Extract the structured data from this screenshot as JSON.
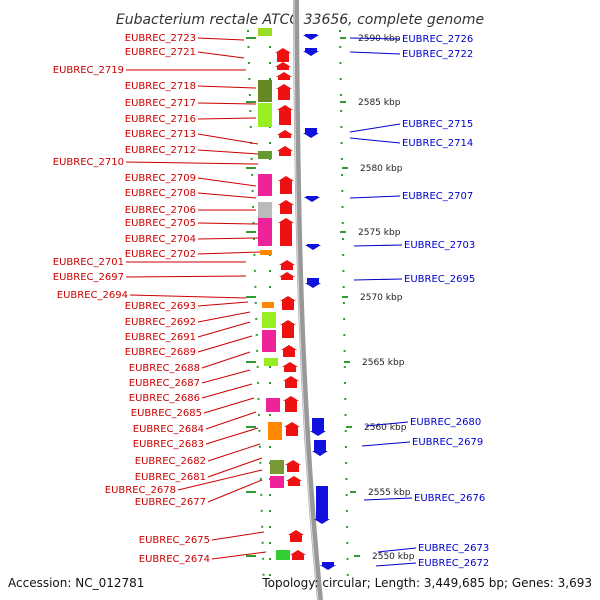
{
  "title": "Eubacterium rectale ATCC 33656, complete genome",
  "accession": "Accession: NC_012781",
  "topology": "Topology: circular; Length: 3,449,685 bp; Genes: 3,693",
  "colors": {
    "left_label": "#cc0000",
    "right_label": "#0000cc",
    "forward_gene": "#ee1111",
    "reverse_gene": "#1111dd",
    "tick": "#339933",
    "backbone": "#999999"
  },
  "scale_ticks": [
    {
      "label": "2590 kbp",
      "kbp": 2590
    },
    {
      "label": "2585 kbp",
      "kbp": 2585
    },
    {
      "label": "2580 kbp",
      "kbp": 2580
    },
    {
      "label": "2575 kbp",
      "kbp": 2575
    },
    {
      "label": "2570 kbp",
      "kbp": 2570
    },
    {
      "label": "2565 kbp",
      "kbp": 2565
    },
    {
      "label": "2560 kbp",
      "kbp": 2560
    },
    {
      "label": "2555 kbp",
      "kbp": 2555
    },
    {
      "label": "2550 kbp",
      "kbp": 2550
    }
  ],
  "left_labels": [
    "EUBREC_2723",
    "EUBREC_2721",
    "EUBREC_2719",
    "EUBREC_2718",
    "EUBREC_2717",
    "EUBREC_2716",
    "EUBREC_2713",
    "EUBREC_2712",
    "EUBREC_2710",
    "EUBREC_2709",
    "EUBREC_2708",
    "EUBREC_2706",
    "EUBREC_2705",
    "EUBREC_2704",
    "EUBREC_2702",
    "EUBREC_2701",
    "EUBREC_2697",
    "EUBREC_2694",
    "EUBREC_2693",
    "EUBREC_2692",
    "EUBREC_2691",
    "EUBREC_2689",
    "EUBREC_2688",
    "EUBREC_2687",
    "EUBREC_2686",
    "EUBREC_2685",
    "EUBREC_2684",
    "EUBREC_2683",
    "EUBREC_2682",
    "EUBREC_2681",
    "EUBREC_2678",
    "EUBREC_2677",
    "EUBREC_2675",
    "EUBREC_2674"
  ],
  "right_labels": [
    "EUBREC_2726",
    "EUBREC_2722",
    "EUBREC_2715",
    "EUBREC_2714",
    "EUBREC_2707",
    "EUBREC_2703",
    "EUBREC_2695",
    "EUBREC_2680",
    "EUBREC_2679",
    "EUBREC_2676",
    "EUBREC_2673",
    "EUBREC_2672"
  ]
}
